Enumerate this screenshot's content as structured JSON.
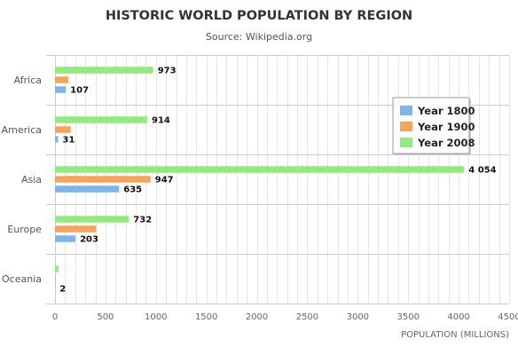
{
  "chart_data": {
    "type": "bar",
    "orientation": "horizontal",
    "title": "HISTORIC WORLD POPULATION BY REGION",
    "subtitle": "Source: Wikipedia.org",
    "xlabel": "POPULATION (MILLIONS)",
    "ylabel": "",
    "categories": [
      "Africa",
      "America",
      "Asia",
      "Europe",
      "Oceania"
    ],
    "xlim": [
      0,
      4500
    ],
    "xticks": [
      0,
      500,
      1000,
      1500,
      2000,
      2500,
      3000,
      3500,
      4000,
      4500
    ],
    "xtick_labels": [
      "0",
      "500",
      "1000",
      "1500",
      "2000",
      "2500",
      "3000",
      "3500",
      "4000",
      "4500"
    ],
    "grid": "vertical",
    "legend_position": "right",
    "series": [
      {
        "name": "Year 1800",
        "color": "#7cb5ec",
        "values": [
          107,
          31,
          635,
          203,
          2
        ],
        "labels": [
          "107",
          "31",
          "635",
          "203",
          "2"
        ]
      },
      {
        "name": "Year 1900",
        "color": "#f7a35c",
        "values": [
          133,
          156,
          947,
          408,
          6
        ],
        "labels": [
          "",
          "",
          "947",
          "",
          ""
        ]
      },
      {
        "name": "Year 2008",
        "color": "#90ed7d",
        "values": [
          973,
          914,
          4054,
          732,
          34
        ],
        "labels": [
          "973",
          "914",
          "4 054",
          "732",
          ""
        ]
      }
    ]
  }
}
